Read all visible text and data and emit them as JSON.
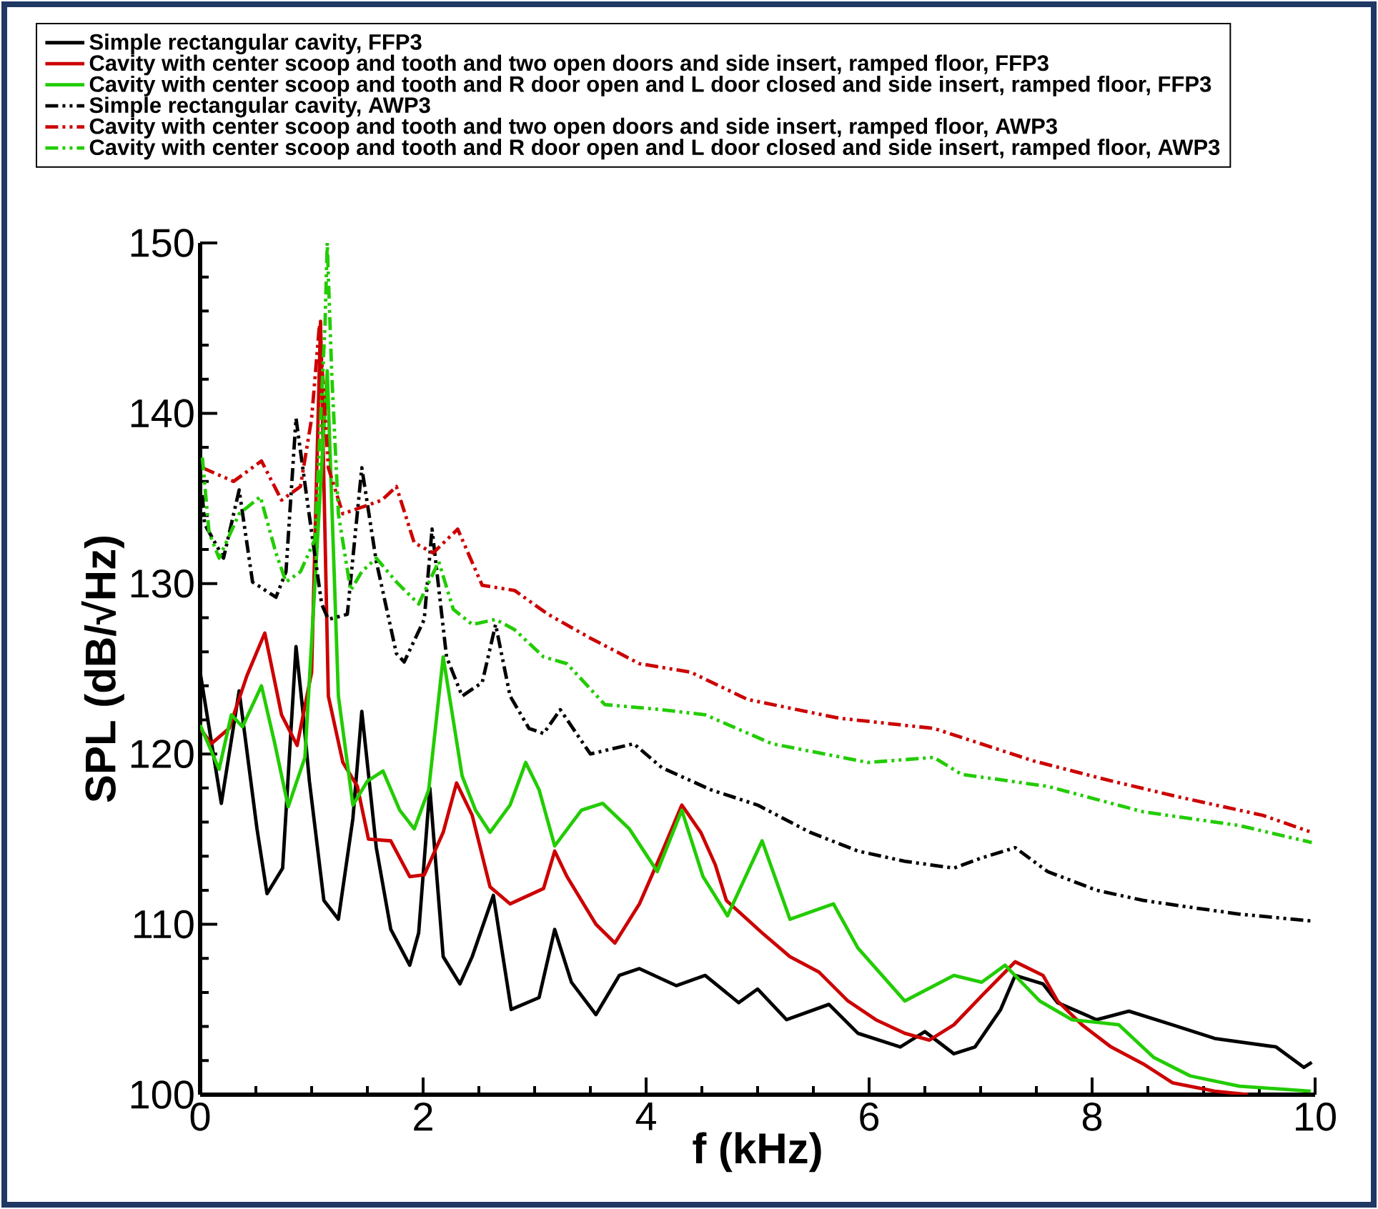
{
  "chart_data": {
    "type": "line",
    "xlabel": "f (kHz)",
    "ylabel": "SPL (dB/√Hz)",
    "xlim": [
      0,
      10
    ],
    "ylim": [
      100,
      150
    ],
    "xticks": [
      0,
      2,
      4,
      6,
      8,
      10
    ],
    "yticks": [
      100,
      110,
      120,
      130,
      140,
      150
    ],
    "legend": "top",
    "series": [
      {
        "name": "Simple rectangular cavity, FFP3",
        "color": "#000000",
        "line_style": "solid",
        "x": [
          0,
          0.19,
          0.35,
          0.51,
          0.6,
          0.74,
          0.86,
          0.92,
          0.98,
          1.11,
          1.24,
          1.37,
          1.45,
          1.58,
          1.71,
          1.88,
          1.96,
          2.06,
          2.18,
          2.33,
          2.44,
          2.63,
          2.79,
          3.04,
          3.18,
          3.33,
          3.55,
          3.76,
          3.94,
          4.27,
          4.53,
          4.83,
          5.0,
          5.26,
          5.64,
          5.9,
          6.28,
          6.5,
          6.76,
          6.95,
          7.18,
          7.31,
          7.56,
          7.69,
          8.04,
          8.33,
          8.72,
          9.1,
          9.65,
          9.9,
          9.97
        ],
        "values": [
          124.8,
          117.1,
          123.7,
          115.6,
          111.8,
          113.3,
          126.3,
          122.6,
          118.4,
          111.4,
          110.3,
          116.2,
          122.5,
          114.5,
          109.7,
          107.6,
          109.5,
          118.0,
          108.1,
          106.5,
          108.1,
          111.7,
          105.0,
          105.7,
          109.7,
          106.6,
          104.7,
          107.0,
          107.4,
          106.4,
          107.0,
          105.4,
          106.2,
          104.4,
          105.3,
          103.6,
          102.8,
          103.7,
          102.4,
          102.8,
          105.0,
          107.0,
          106.5,
          105.4,
          104.4,
          104.9,
          104.1,
          103.3,
          102.8,
          101.6,
          101.9
        ]
      },
      {
        "name": "Cavity with center scoop and tooth and two open doors and side insert, ramped floor, FFP3",
        "color": "#cc0000",
        "line_style": "solid",
        "x": [
          0,
          0.1,
          0.26,
          0.42,
          0.58,
          0.73,
          0.87,
          1.0,
          1.08,
          1.15,
          1.28,
          1.41,
          1.51,
          1.71,
          1.88,
          2.01,
          2.18,
          2.3,
          2.44,
          2.6,
          2.78,
          3.08,
          3.18,
          3.29,
          3.55,
          3.72,
          3.94,
          4.14,
          4.32,
          4.49,
          4.62,
          4.72,
          5.04,
          5.29,
          5.55,
          5.81,
          6.06,
          6.32,
          6.54,
          6.76,
          7.01,
          7.31,
          7.56,
          7.69,
          7.91,
          8.17,
          8.46,
          8.72,
          9.1,
          9.4
        ],
        "values": [
          121.5,
          120.6,
          121.5,
          124.6,
          127.1,
          122.3,
          120.5,
          124.8,
          145.4,
          123.4,
          119.5,
          118.1,
          115.0,
          114.9,
          112.8,
          112.9,
          115.4,
          118.3,
          116.4,
          112.2,
          111.2,
          112.1,
          114.3,
          112.8,
          110.0,
          108.9,
          111.2,
          114.2,
          117.0,
          115.4,
          113.5,
          111.4,
          109.5,
          108.1,
          107.2,
          105.5,
          104.4,
          103.6,
          103.2,
          104.1,
          105.8,
          107.8,
          107.0,
          105.5,
          104.1,
          102.8,
          101.8,
          100.7,
          100.2,
          100.0
        ]
      },
      {
        "name": "Cavity with center scoop and tooth and R door open and L door closed and side insert, ramped floor, FFP3",
        "color": "#22cc00",
        "line_style": "solid",
        "x": [
          0,
          0.17,
          0.28,
          0.38,
          0.55,
          0.67,
          0.79,
          0.94,
          1.14,
          1.24,
          1.37,
          1.5,
          1.64,
          1.79,
          1.92,
          2.05,
          2.18,
          2.35,
          2.47,
          2.6,
          2.78,
          2.92,
          3.04,
          3.18,
          3.42,
          3.61,
          3.85,
          4.1,
          4.32,
          4.51,
          4.73,
          5.04,
          5.29,
          5.68,
          5.9,
          6.32,
          6.76,
          7.01,
          7.22,
          7.53,
          7.82,
          8.24,
          8.55,
          8.88,
          9.32,
          9.96
        ],
        "values": [
          121.7,
          119.1,
          122.3,
          121.6,
          124.0,
          120.6,
          116.9,
          119.8,
          142.5,
          123.4,
          117.0,
          118.4,
          119.0,
          116.7,
          115.6,
          117.9,
          125.7,
          118.7,
          116.7,
          115.4,
          117.0,
          119.5,
          117.9,
          114.6,
          116.7,
          117.1,
          115.6,
          113.1,
          116.7,
          112.8,
          110.5,
          114.9,
          110.3,
          111.2,
          108.6,
          105.5,
          107.0,
          106.6,
          107.6,
          105.5,
          104.4,
          104.1,
          102.2,
          101.1,
          100.5,
          100.2
        ]
      },
      {
        "name": "Simple rectangular cavity, AWP3",
        "color": "#000000",
        "line_style": "dashed",
        "x": [
          0.02,
          0.04,
          0.21,
          0.35,
          0.47,
          0.68,
          0.77,
          0.86,
          0.96,
          1.09,
          1.15,
          1.32,
          1.45,
          1.58,
          1.76,
          1.83,
          2.01,
          2.08,
          2.21,
          2.35,
          2.53,
          2.65,
          2.78,
          2.95,
          3.08,
          3.23,
          3.5,
          3.89,
          4.14,
          4.58,
          5.0,
          5.47,
          5.9,
          6.32,
          6.76,
          7.01,
          7.31,
          7.6,
          8.04,
          8.46,
          8.88,
          9.32,
          9.96
        ],
        "values": [
          135.2,
          133.5,
          131.5,
          135.5,
          130.1,
          129.2,
          130.7,
          139.7,
          134.9,
          128.8,
          127.9,
          128.2,
          136.8,
          131.3,
          125.9,
          125.4,
          127.9,
          133.2,
          125.7,
          123.4,
          124.2,
          127.6,
          123.4,
          121.5,
          121.2,
          122.6,
          120.0,
          120.6,
          119.2,
          117.9,
          117.0,
          115.4,
          114.3,
          113.7,
          113.3,
          113.9,
          114.5,
          113.1,
          112.0,
          111.4,
          111.0,
          110.6,
          110.2
        ]
      },
      {
        "name": "Cavity with center scoop and tooth and two open doors and side insert, ramped floor, AWP3",
        "color": "#cc0000",
        "line_style": "dashed",
        "x": [
          0.02,
          0.3,
          0.55,
          0.73,
          0.9,
          1.0,
          1.07,
          1.15,
          1.28,
          1.5,
          1.63,
          1.76,
          1.92,
          2.09,
          2.31,
          2.53,
          2.82,
          3.12,
          3.5,
          3.94,
          4.4,
          4.91,
          5.73,
          6.58,
          7.05,
          7.47,
          8.12,
          8.76,
          9.53,
          9.97
        ],
        "values": [
          136.8,
          136.0,
          137.2,
          134.9,
          135.7,
          139.7,
          145.2,
          136.8,
          134.1,
          134.6,
          134.9,
          135.7,
          132.4,
          131.8,
          133.2,
          129.9,
          129.6,
          128.2,
          126.8,
          125.3,
          124.8,
          123.2,
          122.1,
          121.5,
          120.5,
          119.6,
          118.5,
          117.5,
          116.4,
          115.4
        ]
      },
      {
        "name": "Cavity with center scoop and tooth and R door open and L door closed and side insert, ramped floor, AWP3",
        "color": "#22cc00",
        "line_style": "dashed",
        "x": [
          0.02,
          0.08,
          0.17,
          0.35,
          0.54,
          0.68,
          0.77,
          0.9,
          1.03,
          1.12,
          1.14,
          1.18,
          1.24,
          1.35,
          1.45,
          1.58,
          1.76,
          1.96,
          2.14,
          2.27,
          2.44,
          2.65,
          2.82,
          3.08,
          3.29,
          3.63,
          4.14,
          4.53,
          5.13,
          5.99,
          6.58,
          6.83,
          7.6,
          8.46,
          9.32,
          9.97
        ],
        "values": [
          137.4,
          133.0,
          131.5,
          134.1,
          135.1,
          131.8,
          130.1,
          130.7,
          132.6,
          145.2,
          150.0,
          142.4,
          134.1,
          129.6,
          130.7,
          131.5,
          130.1,
          128.8,
          131.3,
          128.5,
          127.6,
          127.9,
          127.3,
          125.7,
          125.3,
          122.9,
          122.6,
          122.3,
          120.6,
          119.5,
          119.8,
          118.8,
          118.1,
          116.6,
          115.8,
          114.8
        ]
      }
    ]
  }
}
